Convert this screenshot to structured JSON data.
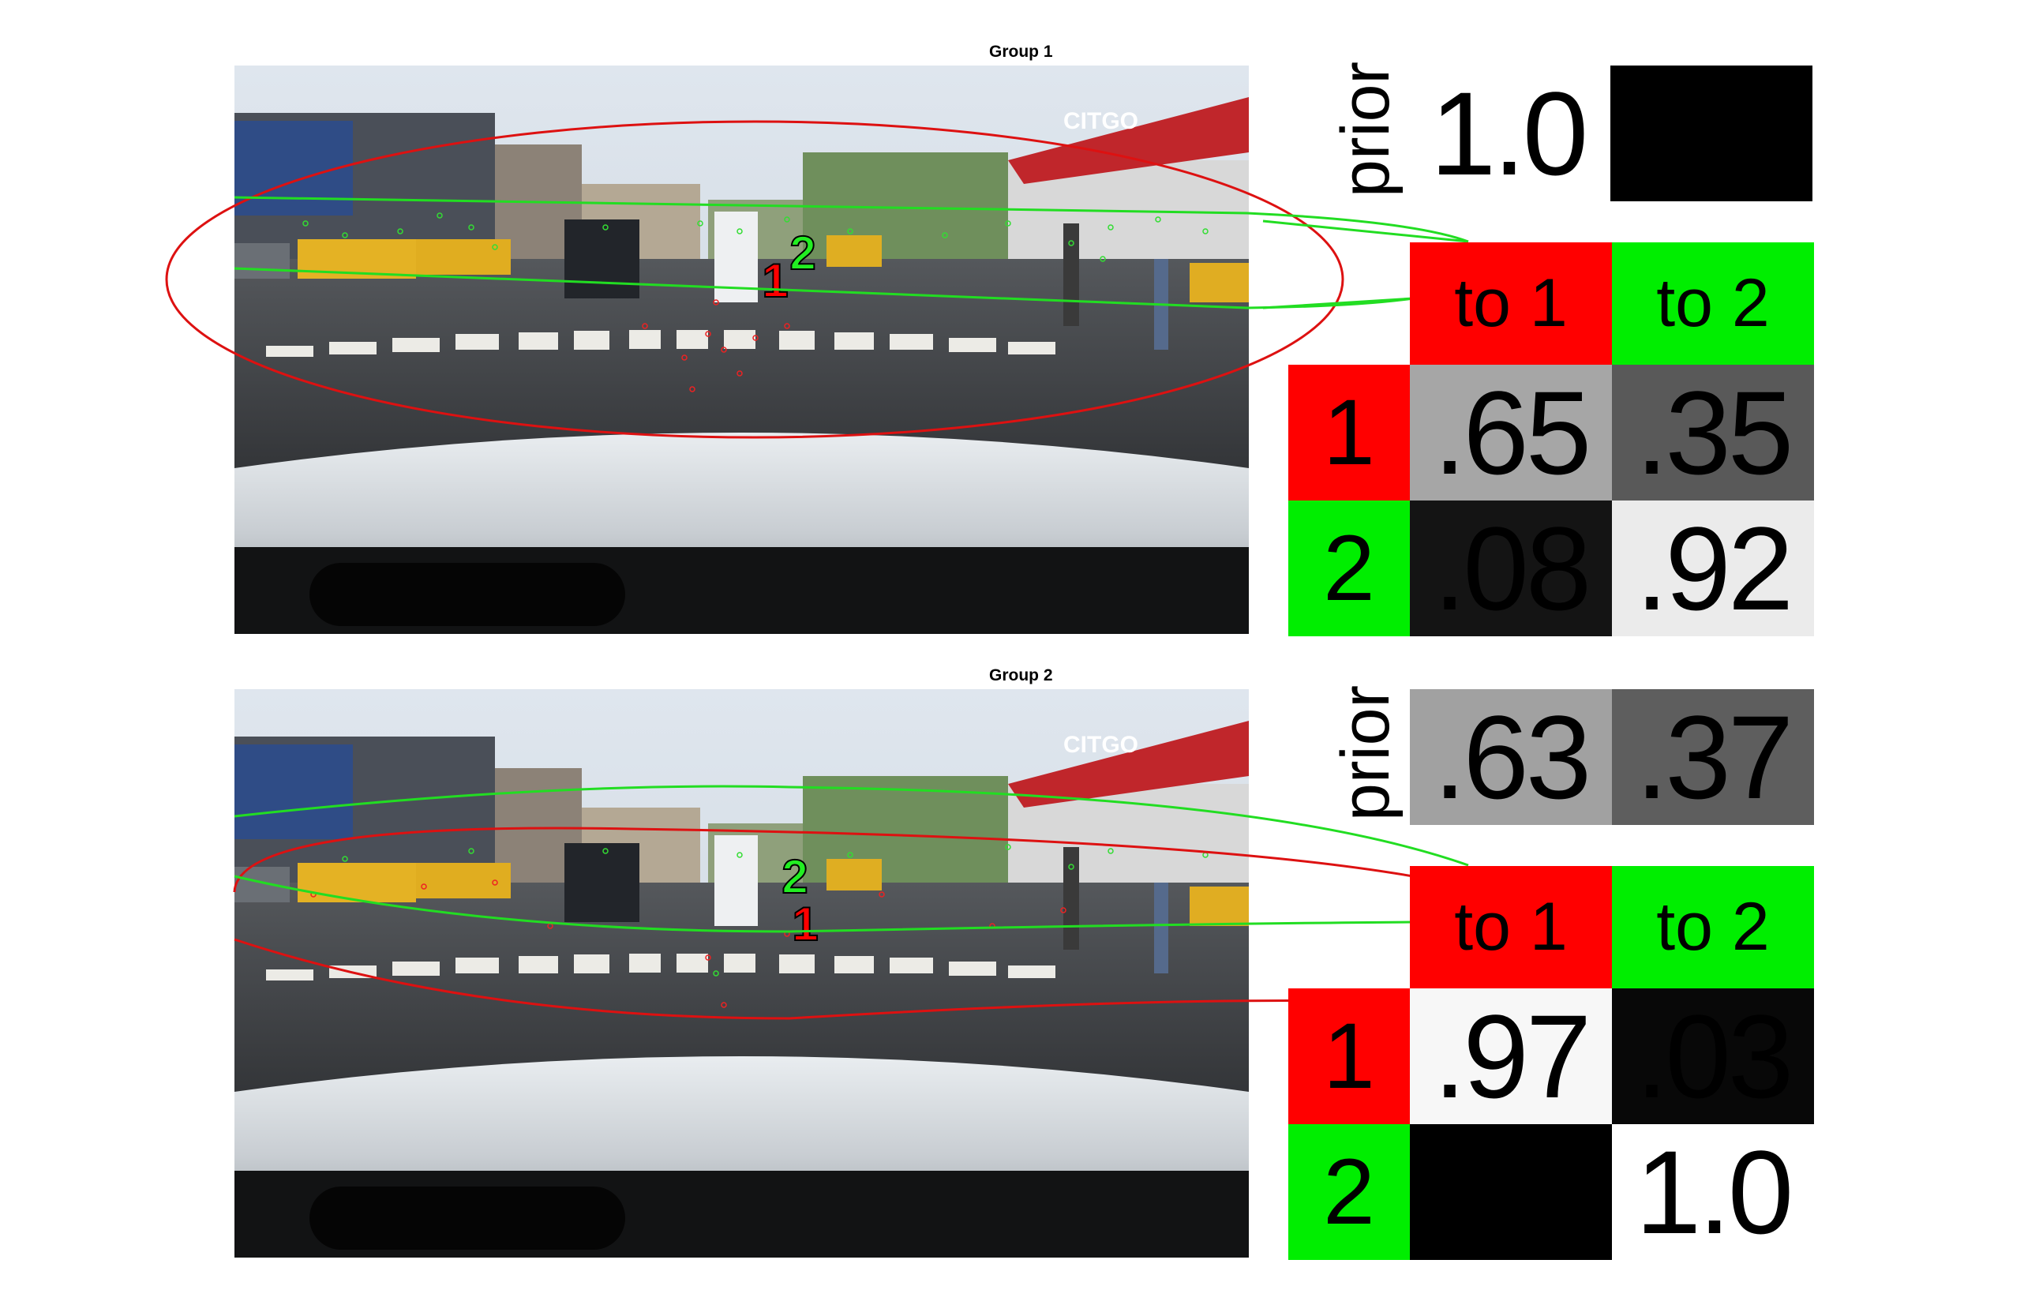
{
  "groups": [
    {
      "title": "Group 1",
      "cluster_markers": {
        "one": "1",
        "two": "2"
      },
      "prior_label": "prior",
      "prior_values": [
        "1.0",
        ""
      ],
      "prior_shades": [
        "#000000",
        "#000000"
      ],
      "header": {
        "to1": "to 1",
        "to2": "to 2"
      },
      "rows": [
        {
          "label": "1",
          "values": [
            ".65",
            ".35"
          ],
          "shades": [
            "#a6a6a6",
            "#595959"
          ]
        },
        {
          "label": "2",
          "values": [
            ".08",
            ".92"
          ],
          "shades": [
            "#141414",
            "#ebebeb"
          ]
        }
      ]
    },
    {
      "title": "Group 2",
      "cluster_markers": {
        "one": "1",
        "two": "2"
      },
      "prior_label": "prior",
      "prior_values": [
        ".63",
        ".37"
      ],
      "prior_shades": [
        "#a1a1a1",
        "#5e5e5e"
      ],
      "header": {
        "to1": "to 1",
        "to2": "to 2"
      },
      "rows": [
        {
          "label": "1",
          "values": [
            ".97",
            ".03"
          ],
          "shades": [
            "#f7f7f7",
            "#080808"
          ]
        },
        {
          "label": "2",
          "values": [
            "",
            "1.0"
          ],
          "shades": [
            "#000000",
            "#ffffff"
          ]
        }
      ]
    }
  ],
  "colors": {
    "red": "#ff0000",
    "green": "#00ee00",
    "ellipse_red": "#dd1111",
    "ellipse_green": "#22dd22"
  }
}
